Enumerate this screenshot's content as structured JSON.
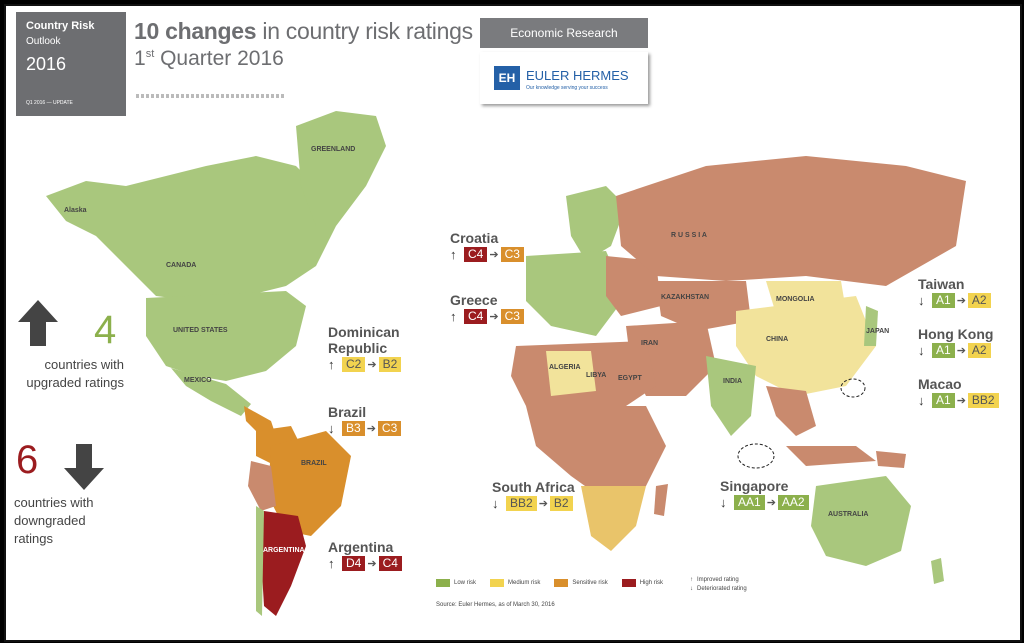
{
  "cover": {
    "title": "Country Risk",
    "subtitle": "Outlook",
    "year": "2016",
    "footer": "Q1 2016 — UPDATE"
  },
  "header": {
    "title_bold": "10 changes",
    "title_rest": " in country risk ratings",
    "quarter_num": "1",
    "quarter_sup": "st",
    "quarter_rest": " Quarter 2016"
  },
  "brand": {
    "section": "Economic Research",
    "logo_mark": "EH",
    "logo_name": "EULER HERMES",
    "tagline": "Our knowledge serving your success"
  },
  "summary": {
    "upgraded_count": "4",
    "upgraded_text": "countries with upgraded ratings",
    "downgraded_count": "6",
    "downgraded_text": "countries with downgraded ratings"
  },
  "changes": [
    {
      "id": "croatia",
      "country": "Croatia",
      "direction": "up",
      "from": "C4",
      "from_risk": "high",
      "to": "C3",
      "to_risk": "sensitive"
    },
    {
      "id": "greece",
      "country": "Greece",
      "direction": "up",
      "from": "C4",
      "from_risk": "high",
      "to": "C3",
      "to_risk": "sensitive"
    },
    {
      "id": "dominican-republic",
      "country": "Dominican Republic",
      "direction": "up",
      "from": "C2",
      "from_risk": "medium",
      "to": "B2",
      "to_risk": "medium"
    },
    {
      "id": "brazil",
      "country": "Brazil",
      "direction": "down",
      "from": "B3",
      "from_risk": "sensitive",
      "to": "C3",
      "to_risk": "sensitive"
    },
    {
      "id": "argentina",
      "country": "Argentina",
      "direction": "up",
      "from": "D4",
      "from_risk": "high",
      "to": "C4",
      "to_risk": "high"
    },
    {
      "id": "south-africa",
      "country": "South Africa",
      "direction": "down",
      "from": "BB2",
      "from_risk": "medium",
      "to": "B2",
      "to_risk": "medium"
    },
    {
      "id": "singapore",
      "country": "Singapore",
      "direction": "down",
      "from": "AA1",
      "from_risk": "low",
      "to": "AA2",
      "to_risk": "low"
    },
    {
      "id": "taiwan",
      "country": "Taiwan",
      "direction": "down",
      "from": "A1",
      "from_risk": "low",
      "to": "A2",
      "to_risk": "medium"
    },
    {
      "id": "hong-kong",
      "country": "Hong Kong",
      "direction": "down",
      "from": "A1",
      "from_risk": "low",
      "to": "A2",
      "to_risk": "medium"
    },
    {
      "id": "macao",
      "country": "Macao",
      "direction": "down",
      "from": "A1",
      "from_risk": "low",
      "to": "BB2",
      "to_risk": "medium"
    }
  ],
  "map_labels": {
    "greenland": "GREENLAND",
    "canada": "CANADA",
    "alaska": "Alaska",
    "us": "UNITED STATES",
    "mexico": "MEXICO",
    "brazil": "BRAZIL",
    "argentina": "ARGENTINA",
    "russia": "R U S S I A",
    "kazakhstan": "KAZAKHSTAN",
    "mongolia": "MONGOLIA",
    "china": "CHINA",
    "india": "INDIA",
    "iran": "IRAN",
    "algeria": "ALGERIA",
    "libya": "LIBYA",
    "egypt": "EGYPT",
    "australia": "AUSTRALIA",
    "japan": "JAPAN"
  },
  "legend": {
    "low": "Low risk",
    "medium": "Medium risk",
    "sensitive": "Sensitive risk",
    "high": "High risk",
    "improved": "Improved rating",
    "deteriorated": "Deteriorated rating",
    "up_symbol": "↑",
    "down_symbol": "↓"
  },
  "source": "Source: Euler Hermes, as of March 30, 2016",
  "colors": {
    "low": "#8cb04c",
    "medium": "#f2d34f",
    "sensitive": "#d98f2c",
    "high": "#9b1c1f",
    "landmass_eurasia": "#c98a6e",
    "landmass_low": "#a9c77d"
  }
}
